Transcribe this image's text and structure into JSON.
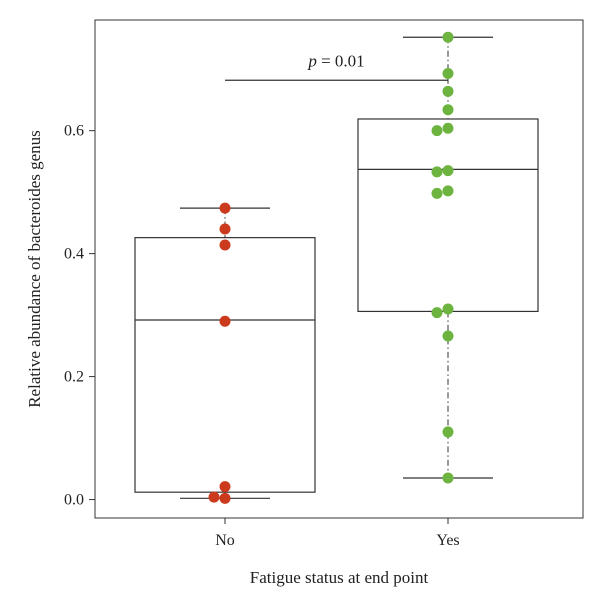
{
  "chart_data": {
    "type": "box",
    "xlabel": "Fatigue status at end point",
    "ylabel": "Relative abundance of bacteroides genus",
    "ylim": [
      -0.03,
      0.78
    ],
    "yticks": [
      0.0,
      0.2,
      0.4,
      0.6
    ],
    "ytick_labels": [
      "0.0",
      "0.2",
      "0.4",
      "0.6"
    ],
    "categories": [
      "No",
      "Yes"
    ],
    "groups": [
      {
        "category": "No",
        "color": "#cc3a1e",
        "whisker_low": 0.002,
        "q1": 0.012,
        "median": 0.292,
        "q3": 0.426,
        "whisker_high": 0.474,
        "points": [
          0.474,
          0.44,
          0.414,
          0.29,
          0.021,
          0.002,
          0.004
        ]
      },
      {
        "category": "Yes",
        "color": "#6db33f",
        "whisker_low": 0.035,
        "q1": 0.306,
        "median": 0.537,
        "q3": 0.619,
        "whisker_high": 0.752,
        "points": [
          0.752,
          0.693,
          0.664,
          0.634,
          0.604,
          0.6,
          0.535,
          0.533,
          0.502,
          0.498,
          0.31,
          0.304,
          0.266,
          0.11,
          0.035
        ]
      }
    ],
    "annotation": {
      "symbol": "p",
      "text": " = 0.01",
      "bracket_y": 0.682
    },
    "grid": false,
    "legend": "none"
  }
}
